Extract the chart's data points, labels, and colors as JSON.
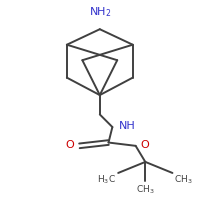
{
  "bond_color": "#404040",
  "nh_color": "#3333cc",
  "o_color": "#cc0000",
  "nh2_color": "#3333cc",
  "bg_color": "#ffffff",
  "line_width": 1.4,
  "figsize": [
    2.0,
    2.0
  ],
  "dpi": 100,
  "NH2_label": "NH$_2$",
  "NH_label": "NH",
  "O_label": "O",
  "H3C_left": "H$_3$C",
  "H3C_right": "CH$_3$",
  "H3C_bottom": "CH$_3$"
}
